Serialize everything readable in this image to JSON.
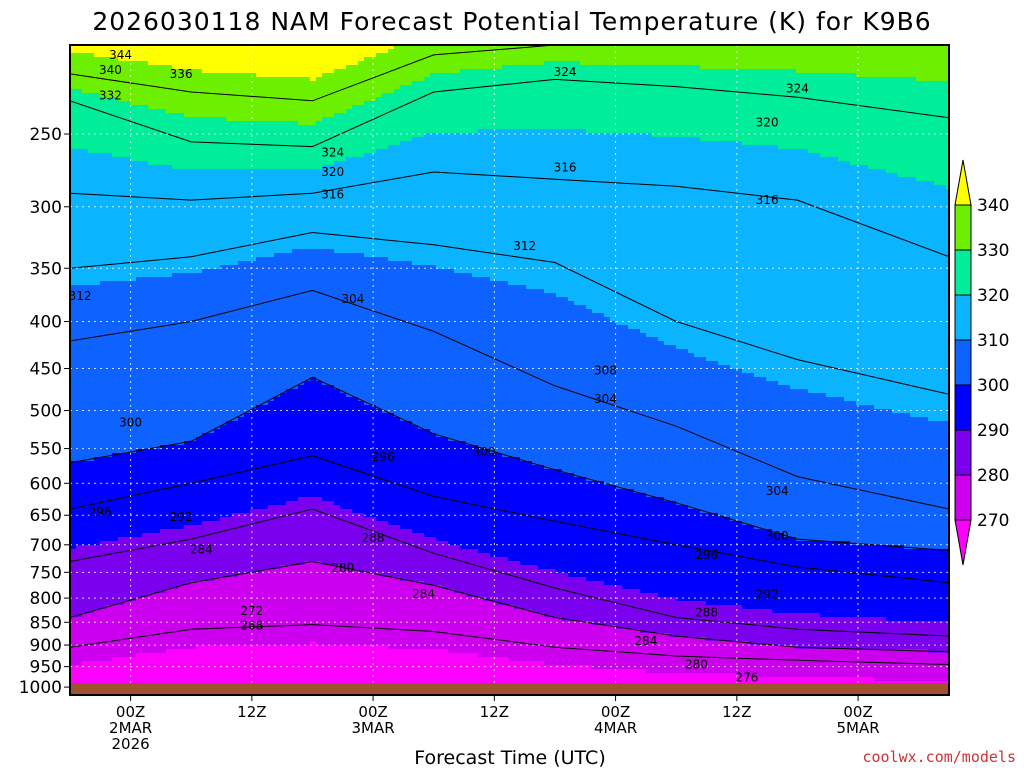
{
  "chart_data": {
    "type": "heatmap",
    "title": "2026030118 NAM Forecast Potential Temperature (K) for K9B6",
    "xlabel": "Forecast Time (UTC)",
    "ylabel": "",
    "credit": "coolwx.com/models",
    "y_scale": "log",
    "y_reversed": true,
    "ylim": [
      1020,
      200
    ],
    "y_ticks": [
      250,
      300,
      350,
      400,
      450,
      500,
      550,
      600,
      650,
      700,
      750,
      800,
      850,
      900,
      950,
      1000
    ],
    "x_start": "2026-03-01T18:00Z",
    "x_end": "2026-03-05T09:00Z",
    "x_ticks": [
      {
        "time": "2026-03-02T00:00Z",
        "lines": [
          "00Z",
          "2MAR",
          "2026"
        ]
      },
      {
        "time": "2026-03-02T12:00Z",
        "lines": [
          "12Z"
        ]
      },
      {
        "time": "2026-03-03T00:00Z",
        "lines": [
          "00Z",
          "3MAR"
        ]
      },
      {
        "time": "2026-03-03T12:00Z",
        "lines": [
          "12Z"
        ]
      },
      {
        "time": "2026-03-04T00:00Z",
        "lines": [
          "00Z",
          "4MAR"
        ]
      },
      {
        "time": "2026-03-04T12:00Z",
        "lines": [
          "12Z"
        ]
      },
      {
        "time": "2026-03-05T00:00Z",
        "lines": [
          "00Z",
          "5MAR"
        ]
      }
    ],
    "grid": true,
    "legend": {
      "position": "right",
      "values": [
        "340",
        "330",
        "320",
        "310",
        "300",
        "290",
        "280",
        "270"
      ],
      "bins": [
        {
          "range": [
            260,
            270
          ],
          "color": "#ff00ff"
        },
        {
          "range": [
            270,
            280
          ],
          "color": "#cc00ee"
        },
        {
          "range": [
            280,
            290
          ],
          "color": "#7a00ee"
        },
        {
          "range": [
            290,
            300
          ],
          "color": "#0000ff"
        },
        {
          "range": [
            300,
            310
          ],
          "color": "#0e62ff"
        },
        {
          "range": [
            310,
            320
          ],
          "color": "#0ab4ff"
        },
        {
          "range": [
            320,
            330
          ],
          "color": "#00ee9a"
        },
        {
          "range": [
            330,
            340
          ],
          "color": "#6cf000"
        },
        {
          "range": [
            340,
            350
          ],
          "color": "#ffff00"
        }
      ]
    },
    "ground_color": "#a0522d",
    "isentropes": [
      {
        "theta": 272,
        "pressure": [
          [
            "2026-03-01T18:00Z",
            905
          ],
          [
            "2026-03-02T06:00Z",
            865
          ],
          [
            "2026-03-02T18:00Z",
            855
          ],
          [
            "2026-03-03T06:00Z",
            870
          ],
          [
            "2026-03-03T18:00Z",
            905
          ],
          [
            "2026-03-04T06:00Z",
            925
          ],
          [
            "2026-03-04T18:00Z",
            935
          ],
          [
            "2026-03-05T09:00Z",
            945
          ]
        ]
      },
      {
        "theta": 280,
        "pressure": [
          [
            "2026-03-01T18:00Z",
            840
          ],
          [
            "2026-03-02T06:00Z",
            770
          ],
          [
            "2026-03-02T18:00Z",
            730
          ],
          [
            "2026-03-03T06:00Z",
            775
          ],
          [
            "2026-03-03T18:00Z",
            840
          ],
          [
            "2026-03-04T06:00Z",
            880
          ],
          [
            "2026-03-04T18:00Z",
            905
          ],
          [
            "2026-03-05T09:00Z",
            915
          ]
        ]
      },
      {
        "theta": 288,
        "pressure": [
          [
            "2026-03-01T18:00Z",
            730
          ],
          [
            "2026-03-02T06:00Z",
            690
          ],
          [
            "2026-03-02T18:00Z",
            640
          ],
          [
            "2026-03-03T06:00Z",
            715
          ],
          [
            "2026-03-03T18:00Z",
            780
          ],
          [
            "2026-03-04T06:00Z",
            840
          ],
          [
            "2026-03-04T18:00Z",
            865
          ],
          [
            "2026-03-05T09:00Z",
            880
          ]
        ]
      },
      {
        "theta": 296,
        "pressure": [
          [
            "2026-03-01T18:00Z",
            640
          ],
          [
            "2026-03-02T06:00Z",
            600
          ],
          [
            "2026-03-02T18:00Z",
            560
          ],
          [
            "2026-03-03T06:00Z",
            620
          ],
          [
            "2026-03-03T18:00Z",
            660
          ],
          [
            "2026-03-04T06:00Z",
            700
          ],
          [
            "2026-03-04T18:00Z",
            740
          ],
          [
            "2026-03-05T09:00Z",
            770
          ]
        ]
      },
      {
        "theta": 300,
        "pressure": [
          [
            "2026-03-01T18:00Z",
            570
          ],
          [
            "2026-03-02T06:00Z",
            540
          ],
          [
            "2026-03-02T18:00Z",
            460
          ],
          [
            "2026-03-03T06:00Z",
            530
          ],
          [
            "2026-03-03T18:00Z",
            580
          ],
          [
            "2026-03-04T06:00Z",
            630
          ],
          [
            "2026-03-04T18:00Z",
            690
          ],
          [
            "2026-03-05T09:00Z",
            710
          ]
        ]
      },
      {
        "theta": 304,
        "pressure": [
          [
            "2026-03-01T18:00Z",
            420
          ],
          [
            "2026-03-02T06:00Z",
            400
          ],
          [
            "2026-03-02T18:00Z",
            370
          ],
          [
            "2026-03-03T06:00Z",
            410
          ],
          [
            "2026-03-03T18:00Z",
            470
          ],
          [
            "2026-03-04T06:00Z",
            520
          ],
          [
            "2026-03-04T18:00Z",
            590
          ],
          [
            "2026-03-05T09:00Z",
            640
          ]
        ]
      },
      {
        "theta": 312,
        "pressure": [
          [
            "2026-03-01T18:00Z",
            350
          ],
          [
            "2026-03-02T06:00Z",
            340
          ],
          [
            "2026-03-02T18:00Z",
            320
          ],
          [
            "2026-03-03T06:00Z",
            330
          ],
          [
            "2026-03-03T18:00Z",
            345
          ],
          [
            "2026-03-04T06:00Z",
            400
          ],
          [
            "2026-03-04T18:00Z",
            440
          ],
          [
            "2026-03-05T09:00Z",
            480
          ]
        ]
      },
      {
        "theta": 316,
        "pressure": [
          [
            "2026-03-01T18:00Z",
            290
          ],
          [
            "2026-03-02T06:00Z",
            295
          ],
          [
            "2026-03-02T18:00Z",
            290
          ],
          [
            "2026-03-03T06:00Z",
            275
          ],
          [
            "2026-03-03T18:00Z",
            280
          ],
          [
            "2026-03-04T06:00Z",
            285
          ],
          [
            "2026-03-04T18:00Z",
            295
          ],
          [
            "2026-03-05T09:00Z",
            340
          ]
        ]
      },
      {
        "theta": 324,
        "pressure": [
          [
            "2026-03-01T18:00Z",
            230
          ],
          [
            "2026-03-02T06:00Z",
            255
          ],
          [
            "2026-03-02T18:00Z",
            258
          ],
          [
            "2026-03-03T06:00Z",
            225
          ],
          [
            "2026-03-03T18:00Z",
            218
          ],
          [
            "2026-03-04T06:00Z",
            222
          ],
          [
            "2026-03-04T18:00Z",
            228
          ],
          [
            "2026-03-05T09:00Z",
            240
          ]
        ]
      },
      {
        "theta": 336,
        "pressure": [
          [
            "2026-03-01T18:00Z",
            215
          ],
          [
            "2026-03-02T06:00Z",
            225
          ],
          [
            "2026-03-02T18:00Z",
            230
          ],
          [
            "2026-03-03T06:00Z",
            205
          ],
          [
            "2026-03-03T18:00Z",
            200
          ],
          [
            "2026-03-04T06:00Z",
            200
          ],
          [
            "2026-03-04T18:00Z",
            200
          ],
          [
            "2026-03-05T09:00Z",
            200
          ]
        ]
      }
    ],
    "contour_labels": [
      {
        "text": "344",
        "time": "2026-03-01T23:00Z",
        "pressure": 205
      },
      {
        "text": "340",
        "time": "2026-03-01T22:00Z",
        "pressure": 213
      },
      {
        "text": "336",
        "time": "2026-03-02T05:00Z",
        "pressure": 215
      },
      {
        "text": "332",
        "time": "2026-03-01T22:00Z",
        "pressure": 227
      },
      {
        "text": "324",
        "time": "2026-03-02T20:00Z",
        "pressure": 262
      },
      {
        "text": "320",
        "time": "2026-03-02T20:00Z",
        "pressure": 275
      },
      {
        "text": "316",
        "time": "2026-03-02T20:00Z",
        "pressure": 291
      },
      {
        "text": "324",
        "time": "2026-03-03T19:00Z",
        "pressure": 214
      },
      {
        "text": "316",
        "time": "2026-03-03T19:00Z",
        "pressure": 272
      },
      {
        "text": "312",
        "time": "2026-03-03T15:00Z",
        "pressure": 331
      },
      {
        "text": "324",
        "time": "2026-03-04T18:00Z",
        "pressure": 223
      },
      {
        "text": "320",
        "time": "2026-03-04T15:00Z",
        "pressure": 243
      },
      {
        "text": "316",
        "time": "2026-03-04T15:00Z",
        "pressure": 295
      },
      {
        "text": "312",
        "time": "2026-03-01T19:00Z",
        "pressure": 375
      },
      {
        "text": "304",
        "time": "2026-03-02T22:00Z",
        "pressure": 378
      },
      {
        "text": "308",
        "time": "2026-03-03T23:00Z",
        "pressure": 452
      },
      {
        "text": "304",
        "time": "2026-03-03T23:00Z",
        "pressure": 486
      },
      {
        "text": "300",
        "time": "2026-03-02T00:00Z",
        "pressure": 515
      },
      {
        "text": "296",
        "time": "2026-03-03T01:00Z",
        "pressure": 562
      },
      {
        "text": "300",
        "time": "2026-03-03T11:00Z",
        "pressure": 555
      },
      {
        "text": "304",
        "time": "2026-03-04T16:00Z",
        "pressure": 612
      },
      {
        "text": "300",
        "time": "2026-03-04T16:00Z",
        "pressure": 685
      },
      {
        "text": "296",
        "time": "2026-03-01T21:00Z",
        "pressure": 645
      },
      {
        "text": "292",
        "time": "2026-03-02T05:00Z",
        "pressure": 653
      },
      {
        "text": "284",
        "time": "2026-03-02T07:00Z",
        "pressure": 708
      },
      {
        "text": "288",
        "time": "2026-03-03T00:00Z",
        "pressure": 688
      },
      {
        "text": "280",
        "time": "2026-03-02T21:00Z",
        "pressure": 742
      },
      {
        "text": "296",
        "time": "2026-03-04T09:00Z",
        "pressure": 718
      },
      {
        "text": "284",
        "time": "2026-03-03T05:00Z",
        "pressure": 792
      },
      {
        "text": "292",
        "time": "2026-03-04T15:00Z",
        "pressure": 793
      },
      {
        "text": "272",
        "time": "2026-03-02T12:00Z",
        "pressure": 826
      },
      {
        "text": "268",
        "time": "2026-03-02T12:00Z",
        "pressure": 857
      },
      {
        "text": "288",
        "time": "2026-03-04T09:00Z",
        "pressure": 829
      },
      {
        "text": "284",
        "time": "2026-03-04T03:00Z",
        "pressure": 891
      },
      {
        "text": "280",
        "time": "2026-03-04T08:00Z",
        "pressure": 945
      },
      {
        "text": "276",
        "time": "2026-03-04T13:00Z",
        "pressure": 976
      }
    ]
  }
}
